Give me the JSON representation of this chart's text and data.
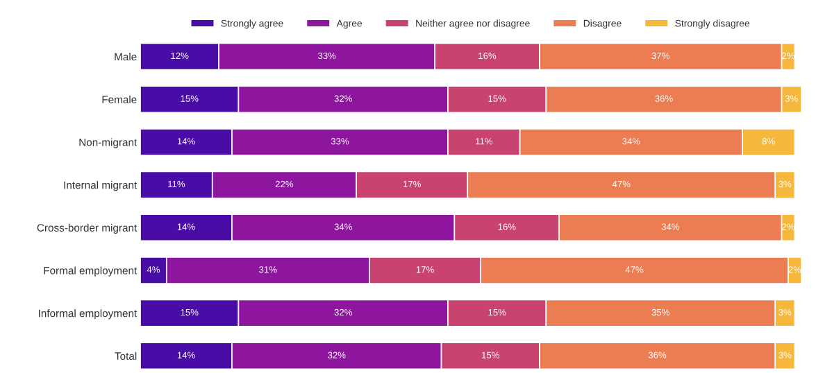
{
  "chart_data": {
    "type": "bar",
    "orientation": "horizontal",
    "stacked": true,
    "legend": "top",
    "grid": false,
    "categories": [
      "Male",
      "Female",
      "Non-migrant",
      "Internal migrant",
      "Cross-border migrant",
      "Formal employment",
      "Informal employment",
      "Total"
    ],
    "series": [
      {
        "name": "Strongly agree",
        "color": "#4a0ca6",
        "values": [
          12,
          15,
          14,
          11,
          14,
          4,
          15,
          14
        ],
        "value_labels": [
          "12%",
          "15%",
          "14%",
          "11%",
          "14%",
          "4%",
          "15%",
          "14%"
        ]
      },
      {
        "name": "Agree",
        "color": "#8e169f",
        "values": [
          33,
          32,
          33,
          22,
          34,
          31,
          32,
          32
        ],
        "value_labels": [
          "33%",
          "32%",
          "33%",
          "22%",
          "34%",
          "31%",
          "32%",
          "32%"
        ]
      },
      {
        "name": "Neither agree nor disagree",
        "color": "#c8436f",
        "values": [
          16,
          15,
          11,
          17,
          16,
          17,
          15,
          15
        ],
        "value_labels": [
          "16%",
          "15%",
          "11%",
          "17%",
          "16%",
          "17%",
          "15%",
          "15%"
        ]
      },
      {
        "name": "Disagree",
        "color": "#ec7c52",
        "values": [
          37,
          36,
          34,
          47,
          34,
          47,
          35,
          36
        ],
        "value_labels": [
          "37%",
          "36%",
          "34%",
          "47%",
          "34%",
          "47%",
          "35%",
          "36%"
        ]
      },
      {
        "name": "Strongly disagree",
        "color": "#f5b73c",
        "values": [
          2,
          3,
          8,
          3,
          2,
          2,
          3,
          3
        ],
        "value_labels": [
          "2%",
          "3%",
          "8%",
          "3%",
          "2%",
          "2%",
          "3%",
          "3%"
        ]
      }
    ]
  }
}
